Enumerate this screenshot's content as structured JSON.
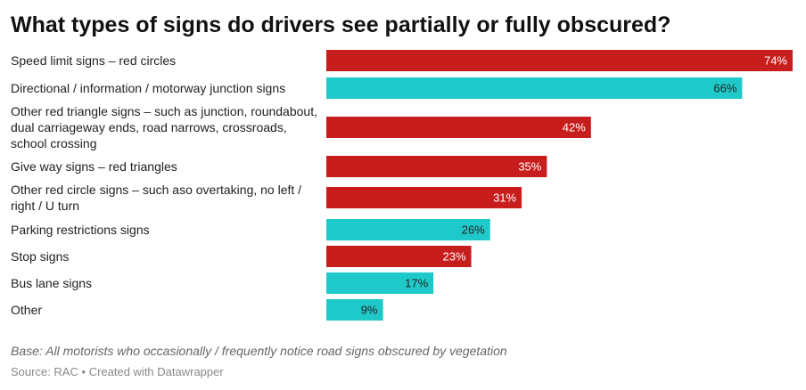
{
  "title": "What types of signs do drivers see partially or fully obscured?",
  "notes": "Base: All motorists who occasionally / frequently notice road signs obscured by vegetation",
  "footer": {
    "source": "Source: RAC",
    "separator": "•",
    "credit": "Created with Datawrapper"
  },
  "colors": {
    "red": "#c71e1d",
    "teal": "#1fc9c9"
  },
  "chart_data": {
    "type": "bar",
    "orientation": "horizontal",
    "value_suffix": "%",
    "xlim": [
      0,
      74
    ],
    "grid": false,
    "legend": "none",
    "categories": [
      "Speed limit signs – red circles",
      "Directional / information / motorway junction signs",
      "Other red triangle signs – such as junction, roundabout, dual carriageway ends, road narrows, crossroads, school crossing",
      "Give way signs – red triangles",
      "Other red circle signs – such aso overtaking, no left / right / U turn",
      "Parking restrictions signs",
      "Stop signs",
      "Bus lane signs",
      "Other"
    ],
    "values": [
      74,
      66,
      42,
      35,
      31,
      26,
      23,
      17,
      9
    ],
    "bar_colors": [
      "red",
      "teal",
      "red",
      "red",
      "red",
      "teal",
      "red",
      "teal",
      "teal"
    ]
  }
}
